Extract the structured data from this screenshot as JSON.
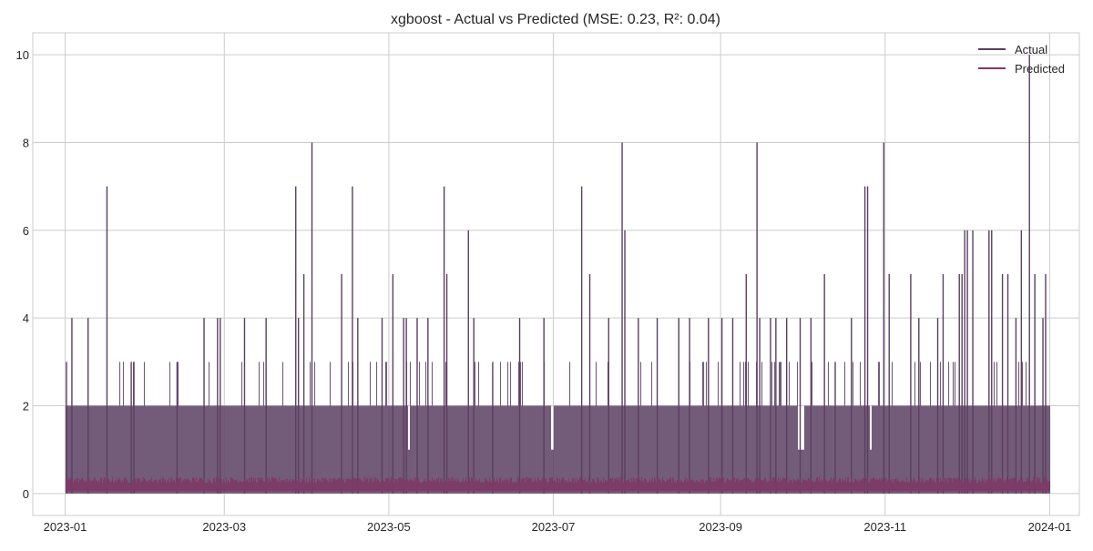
{
  "chart_data": {
    "type": "line",
    "title": "xgboost - Actual vs Predicted (MSE: 0.23, R²: 0.04)",
    "xlabel": "",
    "ylabel": "",
    "x_range": [
      "2022-12-20",
      "2024-01-12"
    ],
    "ylim": [
      -0.5,
      10.5
    ],
    "x_ticks": [
      "2023-01",
      "2023-03",
      "2023-05",
      "2023-07",
      "2023-09",
      "2023-11",
      "2024-01"
    ],
    "y_ticks": [
      0,
      2,
      4,
      6,
      8,
      10
    ],
    "grid": true,
    "legend_position": "top-right",
    "x_start": "2023-01-01",
    "x_end": "2023-12-31",
    "series": [
      {
        "name": "Actual",
        "color": "#5b3f61",
        "base_level": 0,
        "dense_band_max": 2,
        "gaps": [
          {
            "start": "2023-05-08",
            "end": "2023-05-08",
            "max": 1
          },
          {
            "start": "2023-06-30",
            "end": "2023-06-30",
            "max": 1
          },
          {
            "start": "2023-09-29",
            "end": "2023-10-01",
            "max": 1
          },
          {
            "start": "2023-10-26",
            "end": "2023-10-26",
            "max": 1
          }
        ],
        "peaks": [
          {
            "x": "2023-01-01",
            "y": 3
          },
          {
            "x": "2023-01-03",
            "y": 4
          },
          {
            "x": "2023-01-09",
            "y": 4
          },
          {
            "x": "2023-01-16",
            "y": 7
          },
          {
            "x": "2023-01-25",
            "y": 3
          },
          {
            "x": "2023-01-26",
            "y": 3
          },
          {
            "x": "2023-02-11",
            "y": 3
          },
          {
            "x": "2023-02-21",
            "y": 4
          },
          {
            "x": "2023-02-26",
            "y": 4
          },
          {
            "x": "2023-02-27",
            "y": 4
          },
          {
            "x": "2023-03-08",
            "y": 4
          },
          {
            "x": "2023-03-16",
            "y": 4
          },
          {
            "x": "2023-03-27",
            "y": 7
          },
          {
            "x": "2023-03-28",
            "y": 4
          },
          {
            "x": "2023-03-30",
            "y": 5
          },
          {
            "x": "2023-04-02",
            "y": 8
          },
          {
            "x": "2023-04-13",
            "y": 5
          },
          {
            "x": "2023-04-17",
            "y": 7
          },
          {
            "x": "2023-04-19",
            "y": 4
          },
          {
            "x": "2023-04-28",
            "y": 4
          },
          {
            "x": "2023-05-02",
            "y": 5
          },
          {
            "x": "2023-05-06",
            "y": 4
          },
          {
            "x": "2023-05-07",
            "y": 4
          },
          {
            "x": "2023-05-11",
            "y": 4
          },
          {
            "x": "2023-05-15",
            "y": 4
          },
          {
            "x": "2023-05-21",
            "y": 7
          },
          {
            "x": "2023-05-22",
            "y": 5
          },
          {
            "x": "2023-05-30",
            "y": 6
          },
          {
            "x": "2023-06-01",
            "y": 4
          },
          {
            "x": "2023-06-08",
            "y": 3
          },
          {
            "x": "2023-06-18",
            "y": 4
          },
          {
            "x": "2023-06-27",
            "y": 4
          },
          {
            "x": "2023-07-11",
            "y": 7
          },
          {
            "x": "2023-07-14",
            "y": 5
          },
          {
            "x": "2023-07-21",
            "y": 4
          },
          {
            "x": "2023-07-26",
            "y": 8
          },
          {
            "x": "2023-07-27",
            "y": 6
          },
          {
            "x": "2023-08-01",
            "y": 4
          },
          {
            "x": "2023-08-08",
            "y": 4
          },
          {
            "x": "2023-08-16",
            "y": 4
          },
          {
            "x": "2023-08-20",
            "y": 4
          },
          {
            "x": "2023-08-27",
            "y": 4
          },
          {
            "x": "2023-09-01",
            "y": 4
          },
          {
            "x": "2023-09-05",
            "y": 4
          },
          {
            "x": "2023-09-10",
            "y": 5
          },
          {
            "x": "2023-09-14",
            "y": 8
          },
          {
            "x": "2023-09-15",
            "y": 4
          },
          {
            "x": "2023-09-19",
            "y": 4
          },
          {
            "x": "2023-09-21",
            "y": 4
          },
          {
            "x": "2023-09-25",
            "y": 4
          },
          {
            "x": "2023-09-30",
            "y": 4
          },
          {
            "x": "2023-10-04",
            "y": 4
          },
          {
            "x": "2023-10-09",
            "y": 5
          },
          {
            "x": "2023-10-13",
            "y": 3
          },
          {
            "x": "2023-10-19",
            "y": 4
          },
          {
            "x": "2023-10-24",
            "y": 7
          },
          {
            "x": "2023-10-25",
            "y": 7
          },
          {
            "x": "2023-10-31",
            "y": 8
          },
          {
            "x": "2023-11-02",
            "y": 5
          },
          {
            "x": "2023-11-10",
            "y": 5
          },
          {
            "x": "2023-11-13",
            "y": 4
          },
          {
            "x": "2023-11-20",
            "y": 4
          },
          {
            "x": "2023-11-22",
            "y": 5
          },
          {
            "x": "2023-11-28",
            "y": 5
          },
          {
            "x": "2023-11-29",
            "y": 5
          },
          {
            "x": "2023-11-30",
            "y": 6
          },
          {
            "x": "2023-12-01",
            "y": 6
          },
          {
            "x": "2023-12-03",
            "y": 6
          },
          {
            "x": "2023-12-09",
            "y": 6
          },
          {
            "x": "2023-12-10",
            "y": 6
          },
          {
            "x": "2023-12-14",
            "y": 5
          },
          {
            "x": "2023-12-16",
            "y": 5
          },
          {
            "x": "2023-12-19",
            "y": 4
          },
          {
            "x": "2023-12-21",
            "y": 6
          },
          {
            "x": "2023-12-24",
            "y": 10
          },
          {
            "x": "2023-12-26",
            "y": 5
          },
          {
            "x": "2023-12-29",
            "y": 4
          },
          {
            "x": "2023-12-30",
            "y": 5
          }
        ]
      },
      {
        "name": "Predicted",
        "color": "#7d3a67",
        "min": 0.05,
        "typical_max": 0.3,
        "peak_max": 0.38
      }
    ]
  }
}
